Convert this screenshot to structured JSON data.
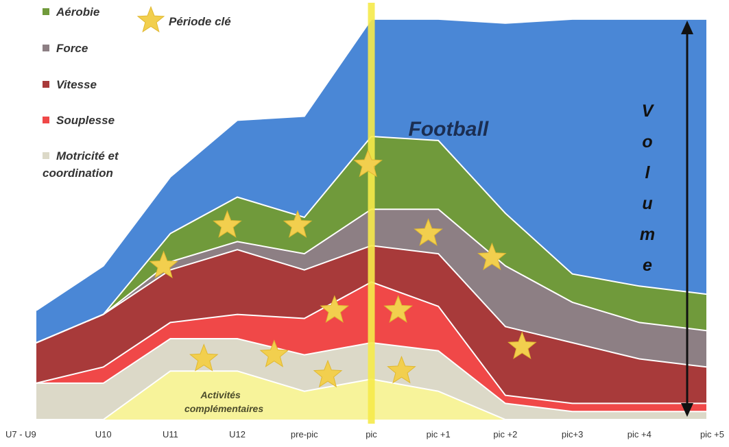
{
  "chart_data": {
    "type": "area",
    "categories": [
      "U7 - U9",
      "U10",
      "U11",
      "U12",
      "pre-pic",
      "pic",
      "pic +1",
      "pic +2",
      "pic+3",
      "pic +4",
      "pic +5"
    ],
    "ylim": [
      0,
      100
    ],
    "stacking": "stacked",
    "series": [
      {
        "name": "Activités complémentaires",
        "color": "#f7f39a",
        "values": [
          0,
          0,
          12,
          12,
          7,
          10,
          7,
          0,
          0,
          0,
          0
        ],
        "legend": false
      },
      {
        "name": "Motricité et coordination",
        "color": "#dcd9c8",
        "values": [
          9,
          9,
          8,
          8,
          9,
          9,
          10,
          4,
          2,
          2,
          2
        ],
        "legend": true
      },
      {
        "name": "Souplesse",
        "color": "#f04848",
        "values": [
          0,
          4,
          4,
          6,
          9,
          15,
          11,
          2,
          2,
          2,
          2
        ],
        "legend": true
      },
      {
        "name": "Vitesse",
        "color": "#a83a3a",
        "values": [
          10,
          13,
          13,
          16,
          12,
          9,
          13,
          17,
          15,
          11,
          9
        ],
        "legend": true
      },
      {
        "name": "Force",
        "color": "#8d7f84",
        "values": [
          0,
          0,
          2,
          2,
          4,
          9,
          11,
          15,
          10,
          9,
          9
        ],
        "legend": true
      },
      {
        "name": "Aérobie",
        "color": "#709a3b",
        "values": [
          0,
          0,
          7,
          11,
          9,
          18,
          17,
          13,
          7,
          9,
          9
        ],
        "legend": true
      },
      {
        "name": "Football",
        "color": "#4a87d6",
        "values": [
          8,
          12,
          14,
          19,
          25,
          29,
          30,
          47,
          63,
          66,
          68
        ],
        "legend": false
      }
    ],
    "legend": [
      {
        "label": "Aérobie",
        "color": "#709a3b"
      },
      {
        "label": "Force",
        "color": "#8d7f84"
      },
      {
        "label": "Vitesse",
        "color": "#a83a3a"
      },
      {
        "label": "Souplesse",
        "color": "#f04848"
      },
      {
        "label": "Motricité et",
        "label2": "coordination",
        "color": "#dcd9c8"
      }
    ],
    "star_legend_label": "Période clé",
    "key_periods": [
      {
        "x": 1.9,
        "y": 38
      },
      {
        "x": 2.85,
        "y": 48
      },
      {
        "x": 3.9,
        "y": 48
      },
      {
        "x": 4.95,
        "y": 63
      },
      {
        "x": 2.5,
        "y": 15
      },
      {
        "x": 3.55,
        "y": 16
      },
      {
        "x": 4.35,
        "y": 11
      },
      {
        "x": 4.45,
        "y": 27
      },
      {
        "x": 5.4,
        "y": 27
      },
      {
        "x": 5.45,
        "y": 12
      },
      {
        "x": 5.85,
        "y": 46
      },
      {
        "x": 6.8,
        "y": 40
      },
      {
        "x": 7.25,
        "y": 18
      }
    ],
    "key_period_line": "pic",
    "annotations": {
      "football": "Football",
      "activites_line1": "Activités",
      "activites_line2": "complémentaires",
      "volume": "Volume"
    },
    "grid": false
  }
}
